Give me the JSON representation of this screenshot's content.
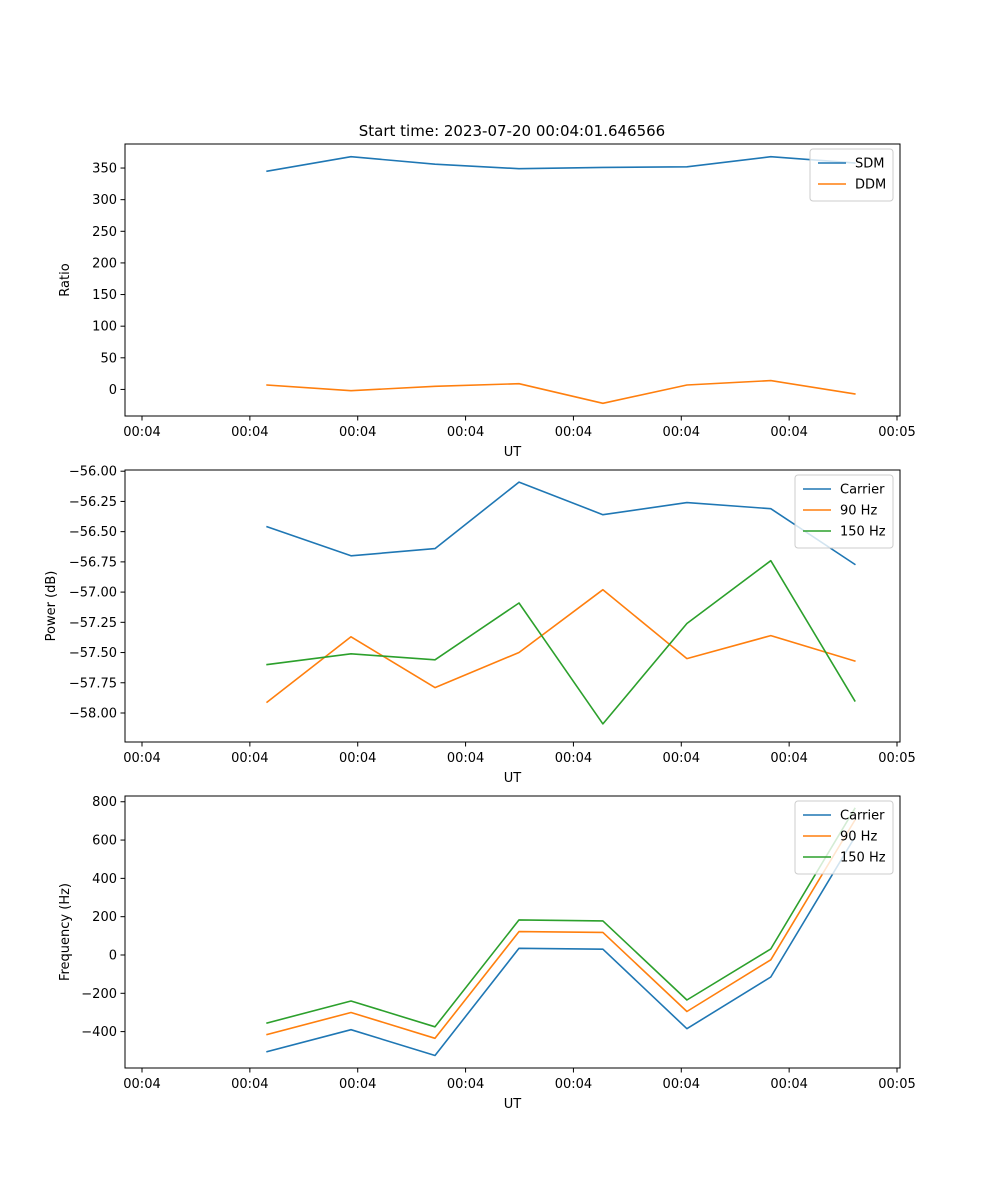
{
  "figure": {
    "title": "Start time: 2023-07-20 00:04:01.646566"
  },
  "chart_data": [
    {
      "type": "line",
      "xlabel": "UT",
      "ylabel": "Ratio",
      "x_tick_labels": [
        "00:04",
        "00:04",
        "00:04",
        "00:04",
        "00:04",
        "00:04",
        "00:04",
        "00:05"
      ],
      "y_ticks": [
        0,
        50,
        100,
        150,
        200,
        250,
        300,
        350
      ],
      "y_tick_labels": [
        "0",
        "50",
        "100",
        "150",
        "200",
        "250",
        "300",
        "350"
      ],
      "xlim": [
        -0.6,
        5.4
      ],
      "ylim": [
        -42,
        388
      ],
      "x": [
        0.5,
        1.15,
        1.8,
        2.45,
        3.1,
        3.75,
        4.4,
        5.05
      ],
      "legend_position": "top-right",
      "series": [
        {
          "name": "SDM",
          "color": "#1f77b4",
          "values": [
            345,
            368,
            356,
            349,
            351,
            352,
            368,
            358
          ]
        },
        {
          "name": "DDM",
          "color": "#ff7f0e",
          "values": [
            7,
            -2,
            5,
            9,
            -22,
            7,
            14,
            -7
          ]
        }
      ]
    },
    {
      "type": "line",
      "xlabel": "UT",
      "ylabel": "Power (dB)",
      "x_tick_labels": [
        "00:04",
        "00:04",
        "00:04",
        "00:04",
        "00:04",
        "00:04",
        "00:04",
        "00:05"
      ],
      "y_ticks": [
        -58.0,
        -57.75,
        -57.5,
        -57.25,
        -57.0,
        -56.75,
        -56.5,
        -56.25,
        -56.0
      ],
      "y_tick_labels": [
        "−58.00",
        "−57.75",
        "−57.50",
        "−57.25",
        "−57.00",
        "−56.75",
        "−56.50",
        "−56.25",
        "−56.00"
      ],
      "xlim": [
        -0.6,
        5.4
      ],
      "ylim": [
        -58.24,
        -55.99
      ],
      "x": [
        0.5,
        1.15,
        1.8,
        2.45,
        3.1,
        3.75,
        4.4,
        5.05
      ],
      "legend_position": "top-right",
      "series": [
        {
          "name": "Carrier",
          "color": "#1f77b4",
          "values": [
            -56.46,
            -56.7,
            -56.64,
            -56.09,
            -56.36,
            -56.26,
            -56.31,
            -56.77
          ]
        },
        {
          "name": "90 Hz",
          "color": "#ff7f0e",
          "values": [
            -57.91,
            -57.37,
            -57.79,
            -57.5,
            -56.98,
            -57.55,
            -57.36,
            -57.57
          ]
        },
        {
          "name": "150 Hz",
          "color": "#2ca02c",
          "values": [
            -57.6,
            -57.51,
            -57.56,
            -57.09,
            -58.09,
            -57.26,
            -56.74,
            -57.9
          ]
        }
      ]
    },
    {
      "type": "line",
      "xlabel": "UT",
      "ylabel": "Frequency (Hz)",
      "x_tick_labels": [
        "00:04",
        "00:04",
        "00:04",
        "00:04",
        "00:04",
        "00:04",
        "00:04",
        "00:05"
      ],
      "y_ticks": [
        -400,
        -200,
        0,
        200,
        400,
        600,
        800
      ],
      "y_tick_labels": [
        "−400",
        "−200",
        "0",
        "200",
        "400",
        "600",
        "800"
      ],
      "xlim": [
        -0.6,
        5.4
      ],
      "ylim": [
        -590,
        830
      ],
      "x": [
        0.5,
        1.15,
        1.8,
        2.45,
        3.1,
        3.75,
        4.4,
        5.05
      ],
      "legend_position": "top-right",
      "series": [
        {
          "name": "Carrier",
          "color": "#1f77b4",
          "values": [
            -505,
            -390,
            -525,
            35,
            30,
            -385,
            -115,
            615
          ]
        },
        {
          "name": "90 Hz",
          "color": "#ff7f0e",
          "values": [
            -415,
            -300,
            -435,
            122,
            118,
            -295,
            -25,
            703
          ]
        },
        {
          "name": "150 Hz",
          "color": "#2ca02c",
          "values": [
            -355,
            -240,
            -375,
            183,
            178,
            -235,
            32,
            765
          ]
        }
      ]
    }
  ]
}
